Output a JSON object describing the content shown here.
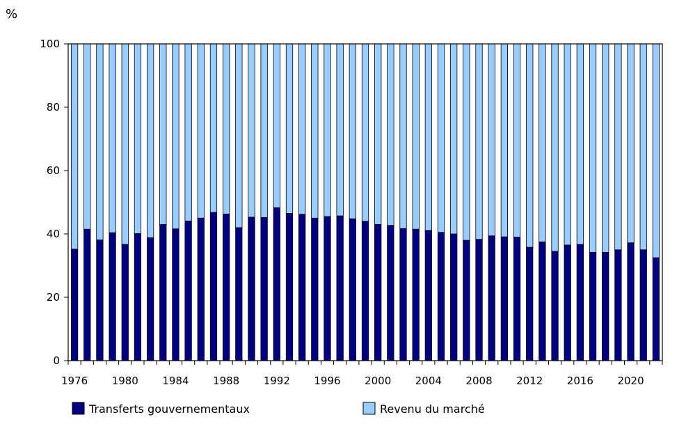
{
  "chart_data": {
    "type": "bar",
    "stacked": true,
    "ylabel": "%",
    "ylim": [
      0,
      100
    ],
    "yticks": [
      0,
      20,
      40,
      60,
      80,
      100
    ],
    "x_tick_labels": [
      "1976",
      "1980",
      "1984",
      "1988",
      "1992",
      "1996",
      "2000",
      "2004",
      "2008",
      "2012",
      "2016",
      "2020"
    ],
    "categories": [
      "1976",
      "1977",
      "1978",
      "1979",
      "1980",
      "1981",
      "1982",
      "1983",
      "1984",
      "1985",
      "1986",
      "1987",
      "1988",
      "1989",
      "1990",
      "1991",
      "1992",
      "1993",
      "1994",
      "1995",
      "1996",
      "1997",
      "1998",
      "1999",
      "2000",
      "2001",
      "2002",
      "2003",
      "2004",
      "2005",
      "2006",
      "2007",
      "2008",
      "2009",
      "2010",
      "2011",
      "2012",
      "2013",
      "2014",
      "2015",
      "2016",
      "2017",
      "2018",
      "2019",
      "2020",
      "2021",
      "2022"
    ],
    "series": [
      {
        "name": "Transferts gouvernementaux",
        "color": "#000080",
        "values": [
          35.2,
          41.5,
          38.1,
          40.4,
          36.7,
          40.1,
          38.8,
          43.0,
          41.6,
          44.1,
          45.0,
          46.8,
          46.3,
          42.0,
          45.3,
          45.2,
          48.3,
          46.5,
          46.2,
          45.0,
          45.5,
          45.7,
          44.8,
          44.0,
          43.0,
          42.7,
          41.7,
          41.5,
          41.1,
          40.5,
          40.0,
          38.0,
          38.3,
          39.4,
          39.1,
          39.0,
          35.8,
          37.5,
          34.5,
          36.5,
          36.7,
          34.2,
          34.2,
          35.0,
          37.2,
          35.0,
          32.5
        ]
      },
      {
        "name": "Revenu du marché",
        "color": "#99ccff",
        "values": [
          64.8,
          58.5,
          61.9,
          59.6,
          63.3,
          59.9,
          61.2,
          57.0,
          58.4,
          55.9,
          55.0,
          53.2,
          53.7,
          58.0,
          54.7,
          54.8,
          51.7,
          53.5,
          53.8,
          55.0,
          54.5,
          54.3,
          55.2,
          56.0,
          57.0,
          57.3,
          58.3,
          58.5,
          58.9,
          59.5,
          60.0,
          62.0,
          61.7,
          60.6,
          60.9,
          61.0,
          64.2,
          62.5,
          65.5,
          63.5,
          63.3,
          65.8,
          65.8,
          65.0,
          62.8,
          65.0,
          67.5
        ]
      }
    ],
    "grid": false,
    "legend_position": "bottom"
  },
  "legend": [
    {
      "label": "Transferts gouvernementaux",
      "color": "#000080"
    },
    {
      "label": "Revenu du marché",
      "color": "#99ccff"
    }
  ]
}
